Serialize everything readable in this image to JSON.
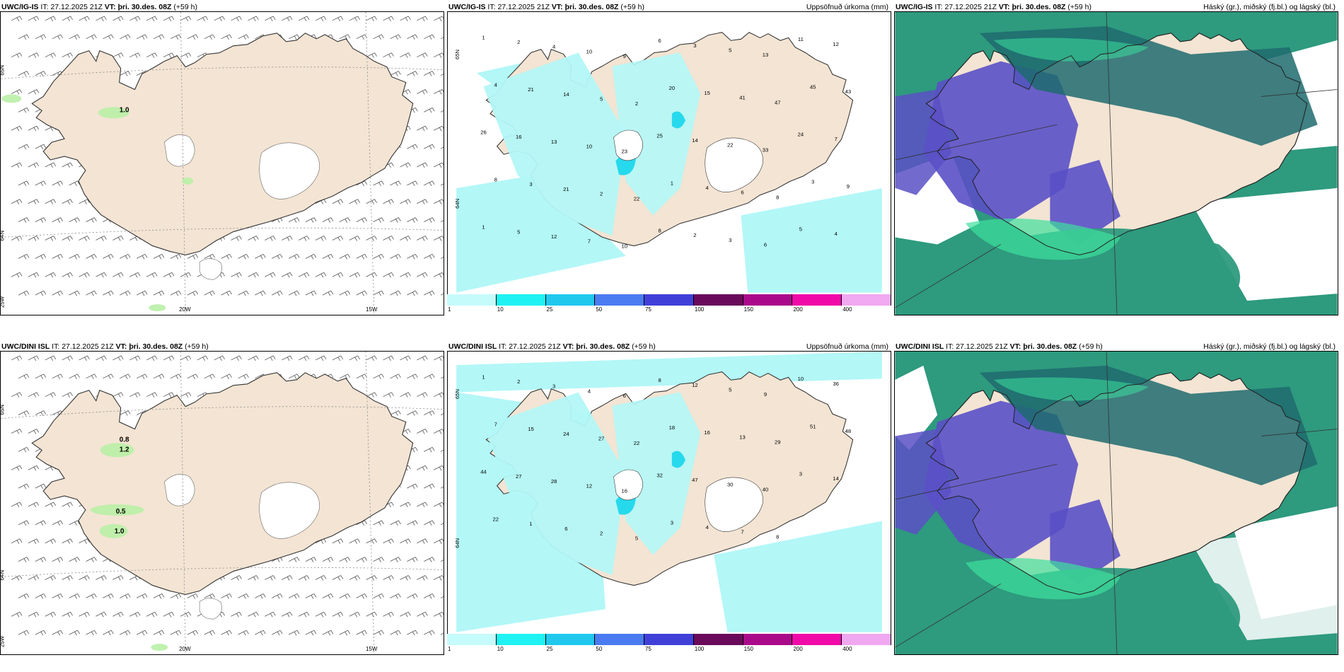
{
  "rows": [
    {
      "id": "ig",
      "model": "UWC/IG-IS",
      "panels": [
        {
          "type": "wind",
          "title_model": "UWC/IG-IS",
          "it_label": "IT:",
          "it_value": "27.12.2025 21Z",
          "vt_label": "VT:",
          "vt_value": "þri. 30.des. 08Z",
          "lead": "(+59 h)",
          "right_title": "",
          "labels": {
            "lat_top": "65N",
            "lat_bottom": "64N",
            "lon_left": "20W",
            "lon_right": "15W",
            "corner": "25W"
          },
          "values": [
            "1.0"
          ]
        },
        {
          "type": "precip",
          "title_model": "UWC/IG-IS",
          "it_label": "IT:",
          "it_value": "27.12.2025 21Z",
          "vt_label": "VT:",
          "vt_value": "þri. 30.des. 08Z",
          "lead": "(+59 h)",
          "right_title": "Uppsöfnuð úrkoma (mm)",
          "labels": {
            "lat_top": "65N",
            "lat_bottom": "64N"
          },
          "values": [
            "1",
            "2",
            "4",
            "10",
            "9",
            "6",
            "3",
            "5",
            "13",
            "11",
            "12",
            "4",
            "21",
            "14",
            "5",
            "2",
            "20",
            "15",
            "41",
            "47",
            "45",
            "43",
            "26",
            "16",
            "13",
            "10",
            "23",
            "25",
            "14",
            "22",
            "33",
            "24",
            "7",
            "8",
            "3",
            "21",
            "2",
            "22",
            "1",
            "4",
            "6",
            "8",
            "3",
            "9",
            "1",
            "5",
            "12",
            "7",
            "10",
            "8",
            "2",
            "3",
            "6",
            "5",
            "4"
          ]
        },
        {
          "type": "cloud",
          "title_model": "UWC/IG-IS",
          "it_label": "IT:",
          "it_value": "27.12.2025 21Z",
          "vt_label": "VT:",
          "vt_value": "þri. 30.des. 08Z",
          "lead": "(+59 h)",
          "right_title": "Háský (gr.), miðský (fj.bl.) og lágský (bl.)"
        }
      ]
    },
    {
      "id": "dini",
      "model": "UWC/DINI ISL",
      "panels": [
        {
          "type": "wind",
          "title_model": "UWC/DINI ISL",
          "it_label": "IT:",
          "it_value": "27.12.2025 21Z",
          "vt_label": "VT:",
          "vt_value": "þri. 30.des. 08Z",
          "lead": "(+59 h)",
          "right_title": "",
          "labels": {
            "lat_top": "65N",
            "lat_bottom": "64N",
            "lon_left": "20W",
            "lon_right": "15W",
            "corner": "25W"
          },
          "values": [
            "1.2",
            "0.8",
            "0.5",
            "1.0"
          ]
        },
        {
          "type": "precip",
          "title_model": "UWC/DINI ISL",
          "it_label": "IT:",
          "it_value": "27.12.2025 21Z",
          "vt_label": "VT:",
          "vt_value": "þri. 30.des. 08Z",
          "lead": "(+59 h)",
          "right_title": "Uppsöfnuð úrkoma (mm)",
          "labels": {
            "lat_top": "65N",
            "lat_bottom": "64N"
          },
          "values": [
            "1",
            "2",
            "3",
            "4",
            "6",
            "8",
            "12",
            "5",
            "9",
            "10",
            "36",
            "7",
            "15",
            "24",
            "27",
            "22",
            "18",
            "16",
            "13",
            "29",
            "51",
            "48",
            "44",
            "27",
            "28",
            "12",
            "16",
            "32",
            "47",
            "30",
            "40",
            "3",
            "14",
            "22",
            "1",
            "6",
            "2",
            "5",
            "3",
            "4",
            "7",
            "8"
          ]
        },
        {
          "type": "cloud",
          "title_model": "UWC/DINI ISL",
          "it_label": "IT:",
          "it_value": "27.12.2025 21Z",
          "vt_label": "VT:",
          "vt_value": "þri. 30.des. 08Z",
          "lead": "(+59 h)",
          "right_title": "Háský (gr.), miðský (fj.bl.) og lágský (bl.)"
        }
      ]
    }
  ],
  "colorbar": {
    "ticks": [
      "1",
      "10",
      "25",
      "50",
      "75",
      "100",
      "150",
      "200",
      "400"
    ],
    "colors": [
      "#c6fbfb",
      "#1ff2f2",
      "#20c8ee",
      "#4a7bf0",
      "#4040d8",
      "#6a0a5a",
      "#aa0a8a",
      "#f00aa8",
      "#f0a8f0"
    ]
  },
  "colors": {
    "land": "#f3e4d3",
    "precip_light": "#b3f7f7",
    "precip_mid": "#27d9ec",
    "high_cloud": "#2e9a7e",
    "high_cloud_dark": "#1e6b6e",
    "mid_cloud": "#5a50c6",
    "low_cloud": "#3ddf9c",
    "wet_spot": "#b9f0a6"
  }
}
